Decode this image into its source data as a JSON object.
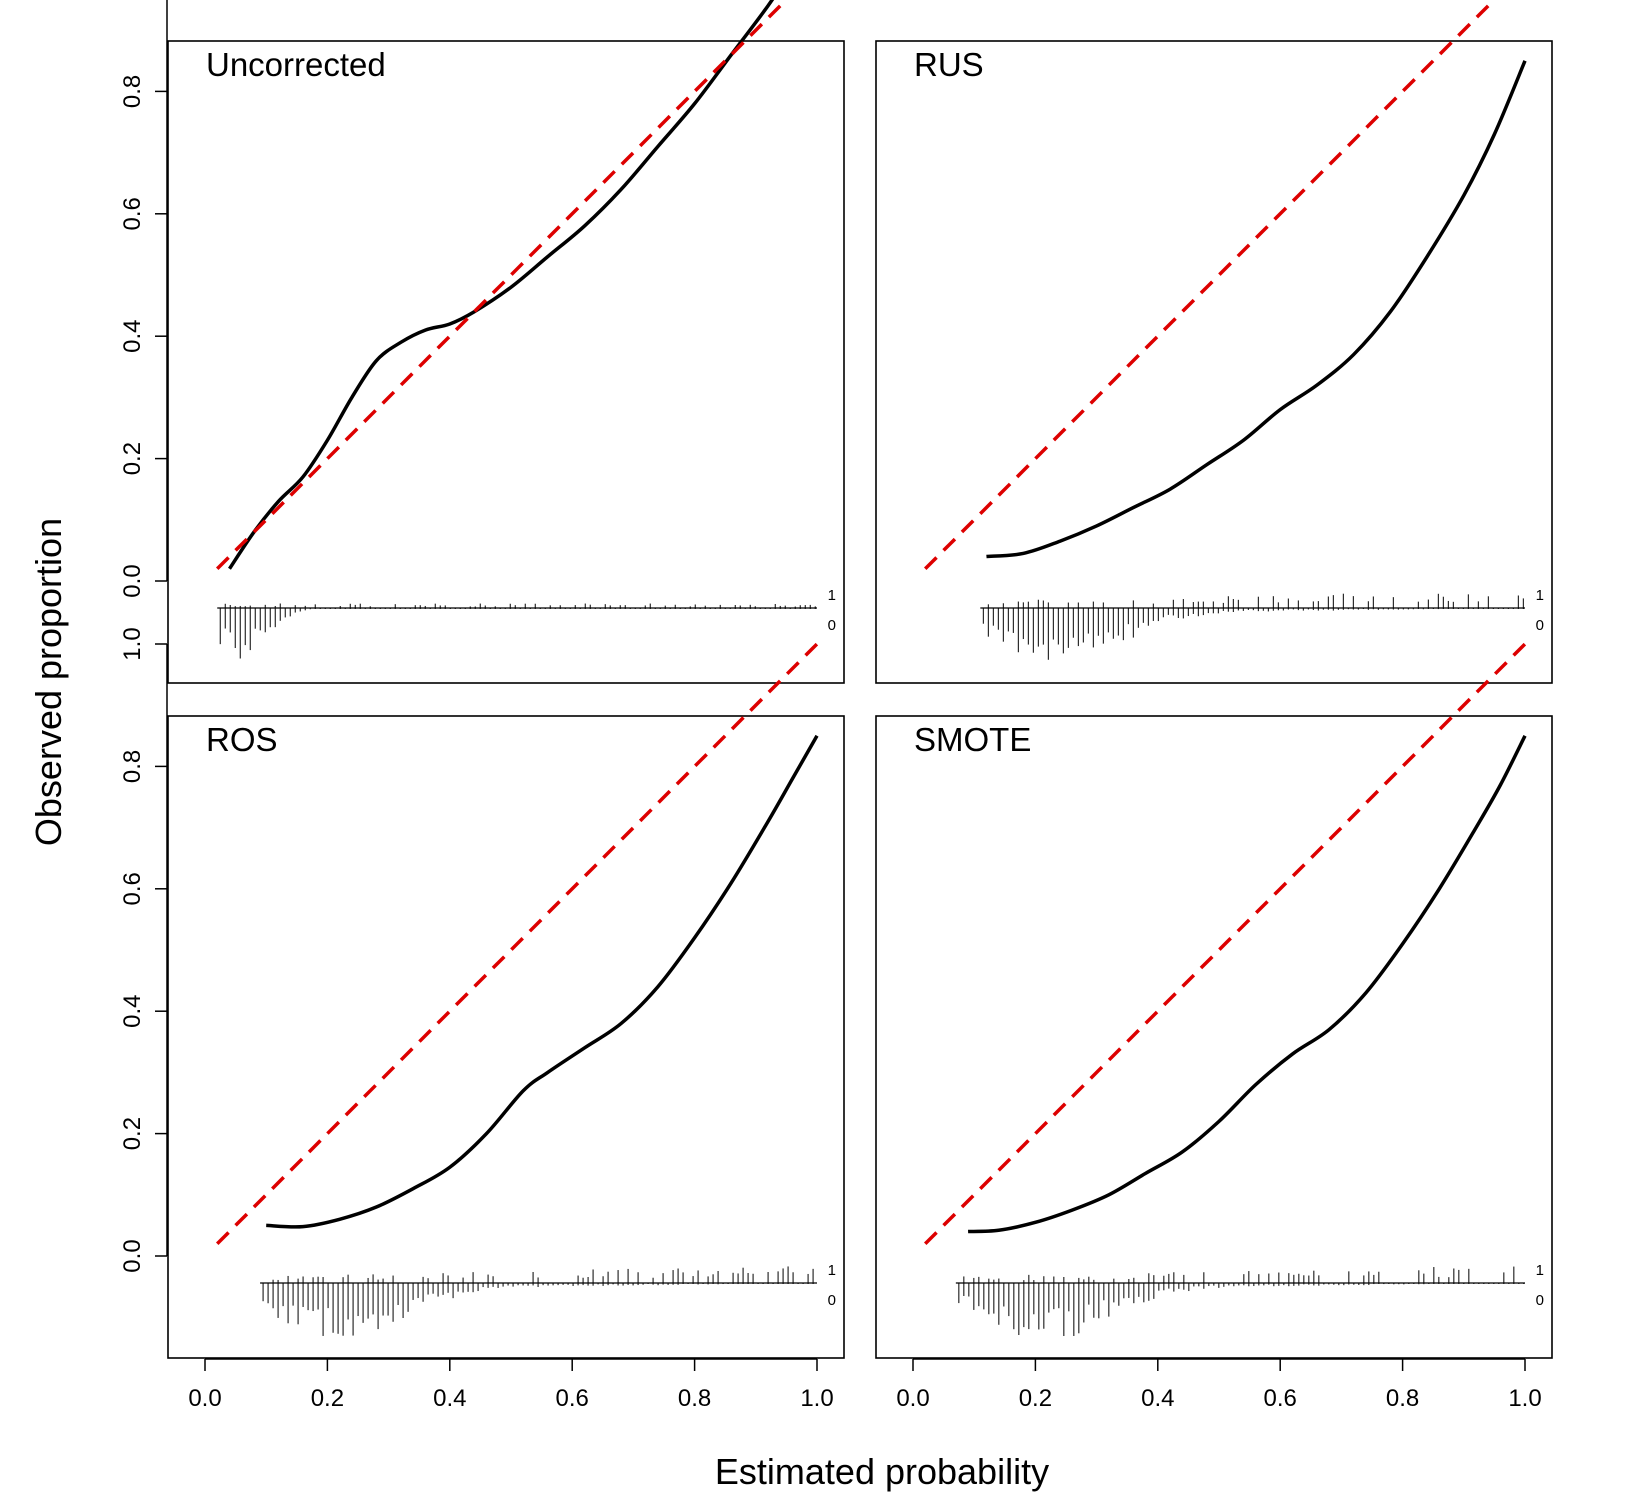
{
  "figure": {
    "xlabel": "Estimated probability",
    "ylabel": "Observed proportion",
    "x_ticks": [
      "0.0",
      "0.2",
      "0.4",
      "0.6",
      "0.8",
      "1.0"
    ],
    "y_ticks": [
      "0.0",
      "0.2",
      "0.4",
      "0.6",
      "0.8",
      "1.0"
    ],
    "rug_labels": [
      "1",
      "0"
    ],
    "colors": {
      "calibration_curve": "#000000",
      "reference_line": "#dd0000",
      "rug": "#000000"
    }
  },
  "chart_data": [
    {
      "type": "line",
      "title": "Uncorrected",
      "xlim": [
        0,
        1
      ],
      "ylim": [
        0,
        1
      ],
      "series": [
        {
          "style": "solid",
          "x": [
            0.04,
            0.08,
            0.12,
            0.16,
            0.2,
            0.24,
            0.28,
            0.32,
            0.36,
            0.4,
            0.44,
            0.5,
            0.56,
            0.62,
            0.68,
            0.74,
            0.8,
            0.86,
            0.92,
            0.96
          ],
          "y": [
            0.02,
            0.08,
            0.13,
            0.17,
            0.23,
            0.3,
            0.36,
            0.39,
            0.41,
            0.42,
            0.44,
            0.48,
            0.53,
            0.58,
            0.64,
            0.71,
            0.78,
            0.86,
            0.94,
            1.0
          ]
        },
        {
          "style": "dashed",
          "x": [
            0.02,
            1.0
          ],
          "y": [
            0.02,
            1.0
          ]
        }
      ],
      "rug": {
        "x_range": [
          0.02,
          1.0
        ],
        "peak": 0.06
      }
    },
    {
      "type": "line",
      "title": "RUS",
      "xlim": [
        0,
        1
      ],
      "ylim": [
        0,
        1
      ],
      "series": [
        {
          "style": "solid",
          "x": [
            0.12,
            0.18,
            0.24,
            0.3,
            0.36,
            0.42,
            0.48,
            0.54,
            0.6,
            0.66,
            0.72,
            0.78,
            0.84,
            0.9,
            0.95,
            1.0
          ],
          "y": [
            0.04,
            0.045,
            0.065,
            0.09,
            0.12,
            0.15,
            0.19,
            0.23,
            0.28,
            0.32,
            0.37,
            0.44,
            0.53,
            0.63,
            0.73,
            0.85
          ]
        },
        {
          "style": "dashed",
          "x": [
            0.02,
            1.0
          ],
          "y": [
            0.02,
            1.0
          ]
        }
      ],
      "rug": {
        "x_range": [
          0.11,
          1.0
        ],
        "peak": 0.24
      }
    },
    {
      "type": "line",
      "title": "ROS",
      "xlim": [
        0,
        1
      ],
      "ylim": [
        0,
        1
      ],
      "series": [
        {
          "style": "solid",
          "x": [
            0.1,
            0.16,
            0.22,
            0.28,
            0.34,
            0.4,
            0.46,
            0.52,
            0.56,
            0.62,
            0.68,
            0.74,
            0.8,
            0.86,
            0.92,
            0.96,
            1.0
          ],
          "y": [
            0.05,
            0.048,
            0.06,
            0.08,
            0.11,
            0.145,
            0.2,
            0.27,
            0.3,
            0.34,
            0.38,
            0.44,
            0.52,
            0.61,
            0.71,
            0.78,
            0.85
          ]
        },
        {
          "style": "dashed",
          "x": [
            0.02,
            1.0
          ],
          "y": [
            0.02,
            1.0
          ]
        }
      ],
      "rug": {
        "x_range": [
          0.09,
          1.0
        ],
        "peak": 0.23
      }
    },
    {
      "type": "line",
      "title": "SMOTE",
      "xlim": [
        0,
        1
      ],
      "ylim": [
        0,
        1
      ],
      "series": [
        {
          "style": "solid",
          "x": [
            0.09,
            0.14,
            0.2,
            0.26,
            0.32,
            0.38,
            0.44,
            0.5,
            0.56,
            0.62,
            0.68,
            0.74,
            0.8,
            0.86,
            0.92,
            0.96,
            1.0
          ],
          "y": [
            0.04,
            0.042,
            0.055,
            0.075,
            0.1,
            0.135,
            0.17,
            0.22,
            0.28,
            0.33,
            0.37,
            0.43,
            0.51,
            0.6,
            0.7,
            0.77,
            0.85
          ]
        },
        {
          "style": "dashed",
          "x": [
            0.02,
            1.0
          ],
          "y": [
            0.02,
            1.0
          ]
        }
      ],
      "rug": {
        "x_range": [
          0.07,
          1.0
        ],
        "peak": 0.22
      }
    }
  ]
}
